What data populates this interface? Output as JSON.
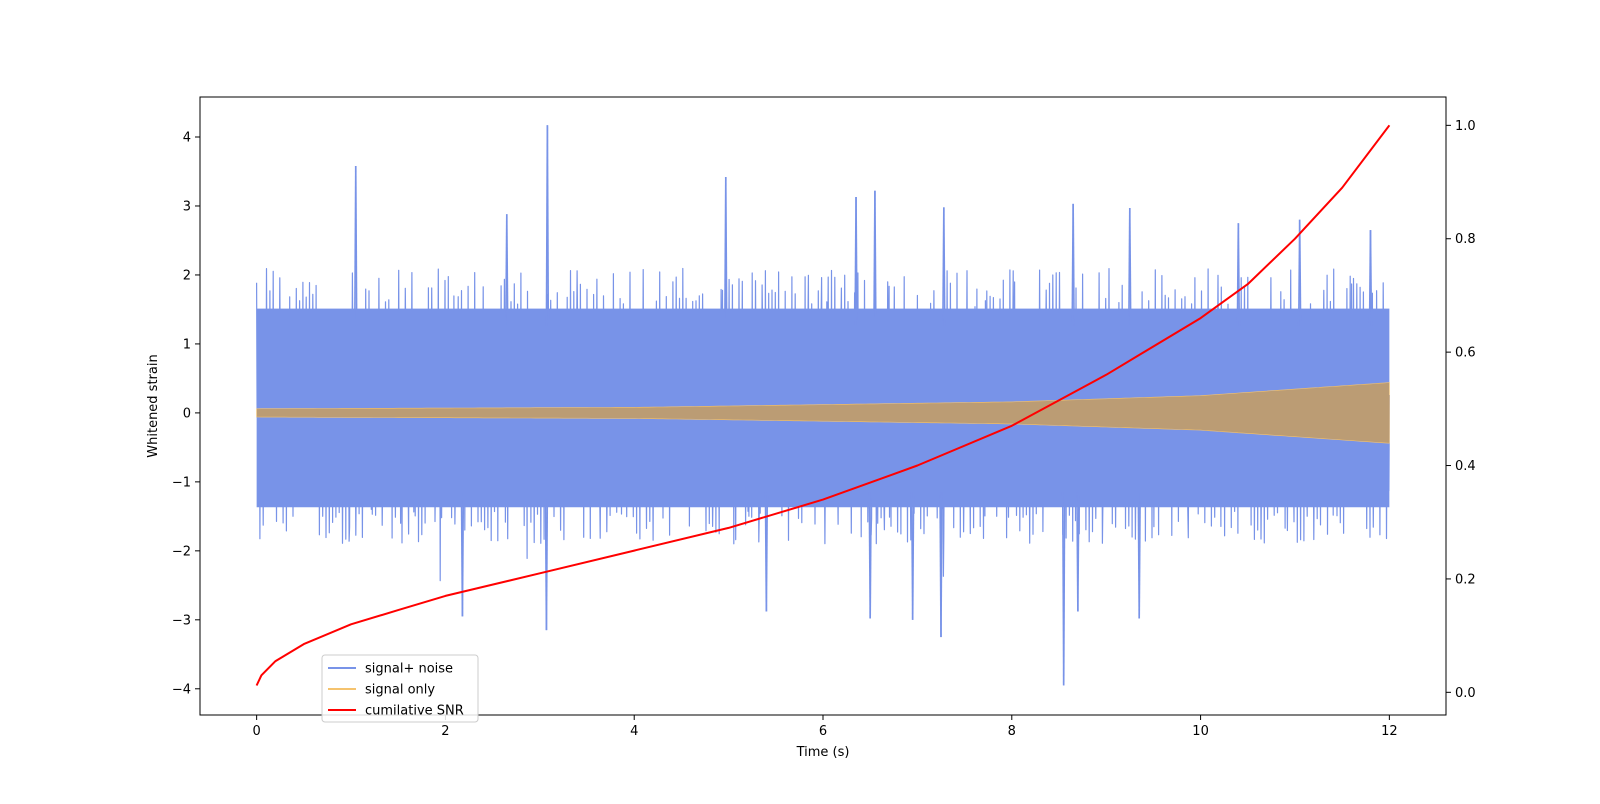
{
  "chart_data": {
    "type": "line",
    "title": "",
    "xlabel": "Time (s)",
    "ylabel": "Whitened strain",
    "y2label": "",
    "xlim": [
      -0.6,
      12.6
    ],
    "ylim": [
      -4.38,
      4.58
    ],
    "y2lim": [
      -0.04,
      1.05
    ],
    "x_ticks": [
      0,
      2,
      4,
      6,
      8,
      10,
      12
    ],
    "y_ticks": [
      -4,
      -3,
      -2,
      -1,
      0,
      1,
      2,
      3,
      4
    ],
    "y2_ticks": [
      0.0,
      0.2,
      0.4,
      0.6,
      0.8,
      1.0
    ],
    "y2_tick_labels": [
      "0.0",
      "0.2",
      "0.4",
      "0.6",
      "0.8",
      "1.0"
    ],
    "grid": false,
    "legend_position": "lower-left",
    "series": [
      {
        "name": "signal+ noise",
        "axis": "left",
        "color": "#7893e8",
        "description_of_values": "noise fluctuating roughly between -2 and 2 across 0-12 s",
        "x_range": [
          0,
          12
        ],
        "typical_envelope": [
          -1.9,
          2.1
        ],
        "notable_peaks": [
          {
            "x": 1.05,
            "y": 3.58
          },
          {
            "x": 3.08,
            "y": 4.17
          },
          {
            "x": 3.07,
            "y": -3.15
          },
          {
            "x": 4.97,
            "y": 3.42
          },
          {
            "x": 2.65,
            "y": 2.88
          },
          {
            "x": 7.28,
            "y": 2.98
          },
          {
            "x": 6.55,
            "y": 3.22
          },
          {
            "x": 6.35,
            "y": 3.13
          },
          {
            "x": 8.65,
            "y": 3.03
          },
          {
            "x": 9.25,
            "y": 2.97
          },
          {
            "x": 2.18,
            "y": -2.95
          },
          {
            "x": 5.4,
            "y": -2.88
          },
          {
            "x": 7.25,
            "y": -3.25
          },
          {
            "x": 8.55,
            "y": -3.95
          },
          {
            "x": 8.7,
            "y": -2.88
          },
          {
            "x": 6.5,
            "y": -2.98
          },
          {
            "x": 6.95,
            "y": -3.0
          },
          {
            "x": 9.35,
            "y": -2.98
          },
          {
            "x": 10.4,
            "y": 2.75
          },
          {
            "x": 11.05,
            "y": 2.8
          },
          {
            "x": 11.8,
            "y": 2.65
          }
        ]
      },
      {
        "name": "signal only",
        "axis": "left",
        "color": "#f5c36e",
        "description_of_values": "chirp oscillation with slowly increasing amplitude",
        "x_range": [
          0,
          12
        ],
        "amplitude_points": [
          {
            "x": 0,
            "y": 0.06
          },
          {
            "x": 4,
            "y": 0.08
          },
          {
            "x": 8,
            "y": 0.16
          },
          {
            "x": 10,
            "y": 0.25
          },
          {
            "x": 12,
            "y": 0.44
          }
        ]
      },
      {
        "name": "cumilative SNR",
        "axis": "right",
        "color": "#ff0000",
        "x": [
          0,
          0.05,
          0.2,
          0.5,
          1,
          1.5,
          2,
          3,
          4,
          5,
          6,
          7,
          8,
          9,
          10,
          10.5,
          11,
          11.5,
          12
        ],
        "values": [
          0.012,
          0.03,
          0.055,
          0.085,
          0.12,
          0.145,
          0.17,
          0.21,
          0.25,
          0.29,
          0.34,
          0.4,
          0.47,
          0.56,
          0.66,
          0.72,
          0.8,
          0.89,
          1.0
        ]
      }
    ]
  }
}
